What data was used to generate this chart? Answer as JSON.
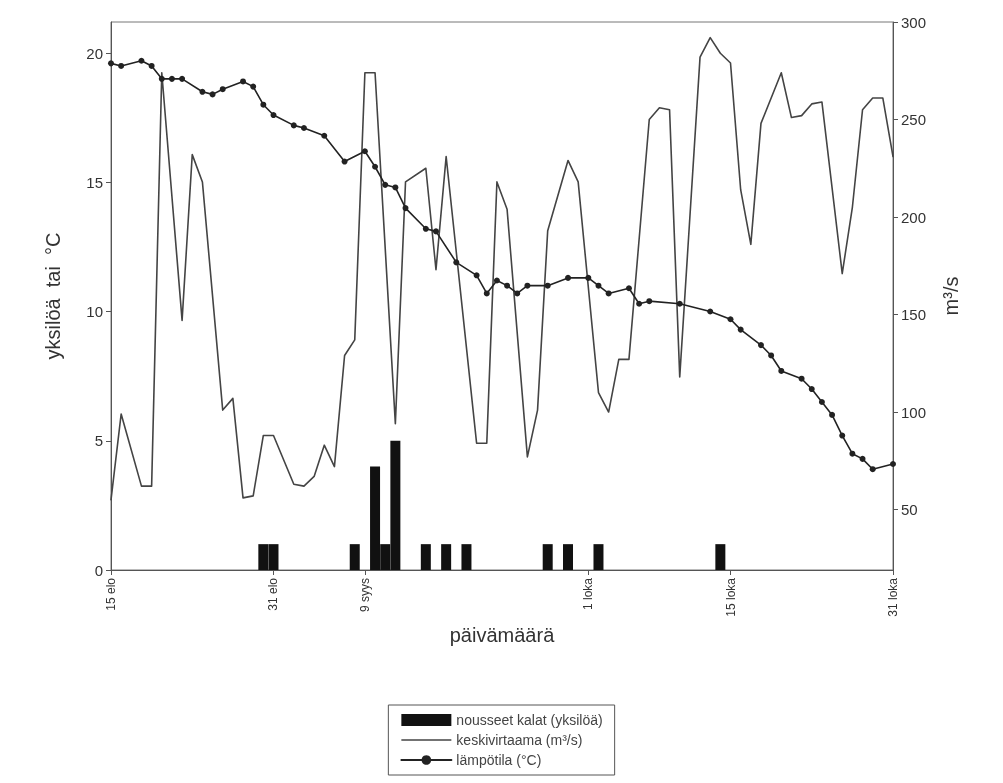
{
  "chart_data": {
    "type": "line",
    "xlabel": "päivämäärä",
    "ylabel": "yksilöä  tai  °C",
    "y2label": "m³/s",
    "xlim": [
      "--08-15",
      "--10-31"
    ],
    "xticks": [
      {
        "value": "--08-15",
        "label": "15 elo"
      },
      {
        "value": "--08-31",
        "label": "31 elo"
      },
      {
        "value": "--09-09",
        "label": "9 syys"
      },
      {
        "value": "--10-01",
        "label": "1 loka"
      },
      {
        "value": "--10-15",
        "label": "15 loka"
      },
      {
        "value": "--10-31",
        "label": "31 loka"
      }
    ],
    "ylim": [
      0,
      21.2
    ],
    "yticks": [
      0,
      5,
      10,
      15,
      20
    ],
    "y2lim": [
      19,
      300
    ],
    "y2ticks": [
      50,
      100,
      150,
      200,
      250,
      300
    ],
    "grid": false,
    "legend": "bottom",
    "series": [
      {
        "name": "nousseet kalat (yksilöä)",
        "type": "bar",
        "color": "#111111",
        "x": [
          "--08-30",
          "--08-31",
          "--09-08",
          "--09-10",
          "--09-11",
          "--09-12",
          "--09-15",
          "--09-17",
          "--09-19",
          "--09-27",
          "--09-29",
          "--10-02",
          "--10-14"
        ],
        "values": [
          1,
          1,
          1,
          4,
          1,
          5,
          1,
          1,
          1,
          1,
          1,
          1,
          1
        ]
      },
      {
        "name": "keskivirtaama (m³/s)",
        "axis": "y2",
        "color": "#444444",
        "marker": "none",
        "line_style": "solid",
        "x": [
          "--08-15",
          "--08-16",
          "--08-18",
          "--08-19",
          "--08-20",
          "--08-22",
          "--08-23",
          "--08-24",
          "--08-26",
          "--08-27",
          "--08-28",
          "--08-29",
          "--08-30",
          "--08-31",
          "--09-02",
          "--09-03",
          "--09-04",
          "--09-05",
          "--09-06",
          "--09-07",
          "--09-08",
          "--09-09",
          "--09-10",
          "--09-12",
          "--09-13",
          "--09-15",
          "--09-16",
          "--09-17",
          "--09-20",
          "--09-21",
          "--09-22",
          "--09-23",
          "--09-25",
          "--09-26",
          "--09-27",
          "--09-29",
          "--09-30",
          "--10-02",
          "--10-03",
          "--10-04",
          "--10-05",
          "--10-07",
          "--10-08",
          "--10-09",
          "--10-10",
          "--10-12",
          "--10-13",
          "--10-14",
          "--10-15",
          "--10-16",
          "--10-17",
          "--10-18",
          "--10-20",
          "--10-21",
          "--10-22",
          "--10-23",
          "--10-24",
          "--10-26",
          "--10-27",
          "--10-28",
          "--10-29",
          "--10-30",
          "--10-31"
        ],
        "values": [
          55,
          99,
          62,
          62,
          274,
          147,
          232,
          218,
          101,
          107,
          56,
          57,
          88,
          88,
          63,
          62,
          67,
          83,
          72,
          129,
          137,
          274,
          274,
          94,
          218,
          225,
          173,
          231,
          84,
          84,
          218,
          204,
          77,
          101,
          193,
          229,
          218,
          110,
          100,
          127,
          127,
          250,
          256,
          255,
          118,
          282,
          292,
          284,
          279,
          214,
          186,
          248,
          274,
          251,
          252,
          258,
          259,
          171,
          205,
          255,
          261,
          261,
          231
        ]
      },
      {
        "name": "lämpötila (°C)",
        "color": "#222222",
        "marker": "circle",
        "line_style": "solid",
        "x": [
          "--08-15",
          "--08-16",
          "--08-18",
          "--08-19",
          "--08-20",
          "--08-21",
          "--08-22",
          "--08-24",
          "--08-25",
          "--08-26",
          "--08-28",
          "--08-29",
          "--08-30",
          "--08-31",
          "--09-02",
          "--09-03",
          "--09-05",
          "--09-07",
          "--09-09",
          "--09-10",
          "--09-11",
          "--09-12",
          "--09-13",
          "--09-15",
          "--09-16",
          "--09-18",
          "--09-20",
          "--09-21",
          "--09-22",
          "--09-23",
          "--09-24",
          "--09-25",
          "--09-27",
          "--09-29",
          "--10-01",
          "--10-02",
          "--10-03",
          "--10-05",
          "--10-06",
          "--10-07",
          "--10-10",
          "--10-13",
          "--10-15",
          "--10-16",
          "--10-18",
          "--10-19",
          "--10-20",
          "--10-22",
          "--10-23",
          "--10-24",
          "--10-25",
          "--10-26",
          "--10-27",
          "--10-28",
          "--10-29",
          "--10-31"
        ],
        "values": [
          19.6,
          19.5,
          19.7,
          19.5,
          19.0,
          19.0,
          19.0,
          18.5,
          18.4,
          18.6,
          18.9,
          18.7,
          18.0,
          17.6,
          17.2,
          17.1,
          16.8,
          15.8,
          16.2,
          15.6,
          14.9,
          14.8,
          14.0,
          13.2,
          13.1,
          11.9,
          11.4,
          10.7,
          11.2,
          11.0,
          10.7,
          11.0,
          11.0,
          11.3,
          11.3,
          11.0,
          10.7,
          10.9,
          10.3,
          10.4,
          10.3,
          10.0,
          9.7,
          9.3,
          8.7,
          8.3,
          7.7,
          7.4,
          7.0,
          6.5,
          6.0,
          5.2,
          4.5,
          4.3,
          3.9,
          4.1
        ]
      }
    ]
  }
}
